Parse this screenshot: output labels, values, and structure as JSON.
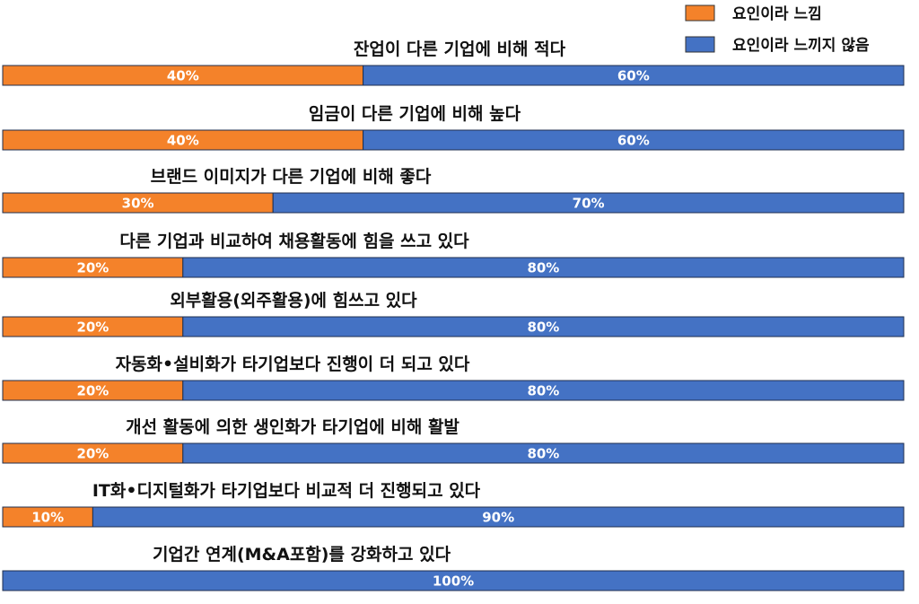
{
  "chart_data": {
    "type": "bar",
    "stacked": true,
    "orientation": "horizontal",
    "percent_scale": [
      0,
      100
    ],
    "categories": [
      "잔업이 다른 기업에 비해 적다",
      "임금이 다른 기업에 비해 높다",
      "브랜드 이미지가 다른 기업에 비해 좋다",
      "다른 기업과 비교하여 채용활동에 힘을 쓰고 있다",
      "외부활용(외주활용)에 힘쓰고 있다",
      "자동화•설비화가 타기업보다 진행이 더 되고 있다",
      "개선 활동에  의한 생인화가 타기업에 비해 활발",
      "IT화•디지털화가 타기업보다 비교적 더 진행되고 있다",
      "기업간 연계(M&A포함)를 강화하고 있다"
    ],
    "series": [
      {
        "name": "요인이라 느낌",
        "color": "#F4822A",
        "values": [
          40,
          40,
          30,
          20,
          20,
          20,
          20,
          10,
          0
        ]
      },
      {
        "name": "요인이라 느끼지 않음",
        "color": "#4472C4",
        "values": [
          60,
          60,
          70,
          80,
          80,
          80,
          80,
          90,
          100
        ]
      }
    ],
    "value_labels": [
      [
        "40%",
        "60%"
      ],
      [
        "40%",
        "60%"
      ],
      [
        "30%",
        "70%"
      ],
      [
        "20%",
        "80%"
      ],
      [
        "20%",
        "80%"
      ],
      [
        "20%",
        "80%"
      ],
      [
        "20%",
        "80%"
      ],
      [
        "10%",
        "90%"
      ],
      [
        "",
        "100%"
      ]
    ],
    "legend_position": "top-right",
    "grid": false
  }
}
